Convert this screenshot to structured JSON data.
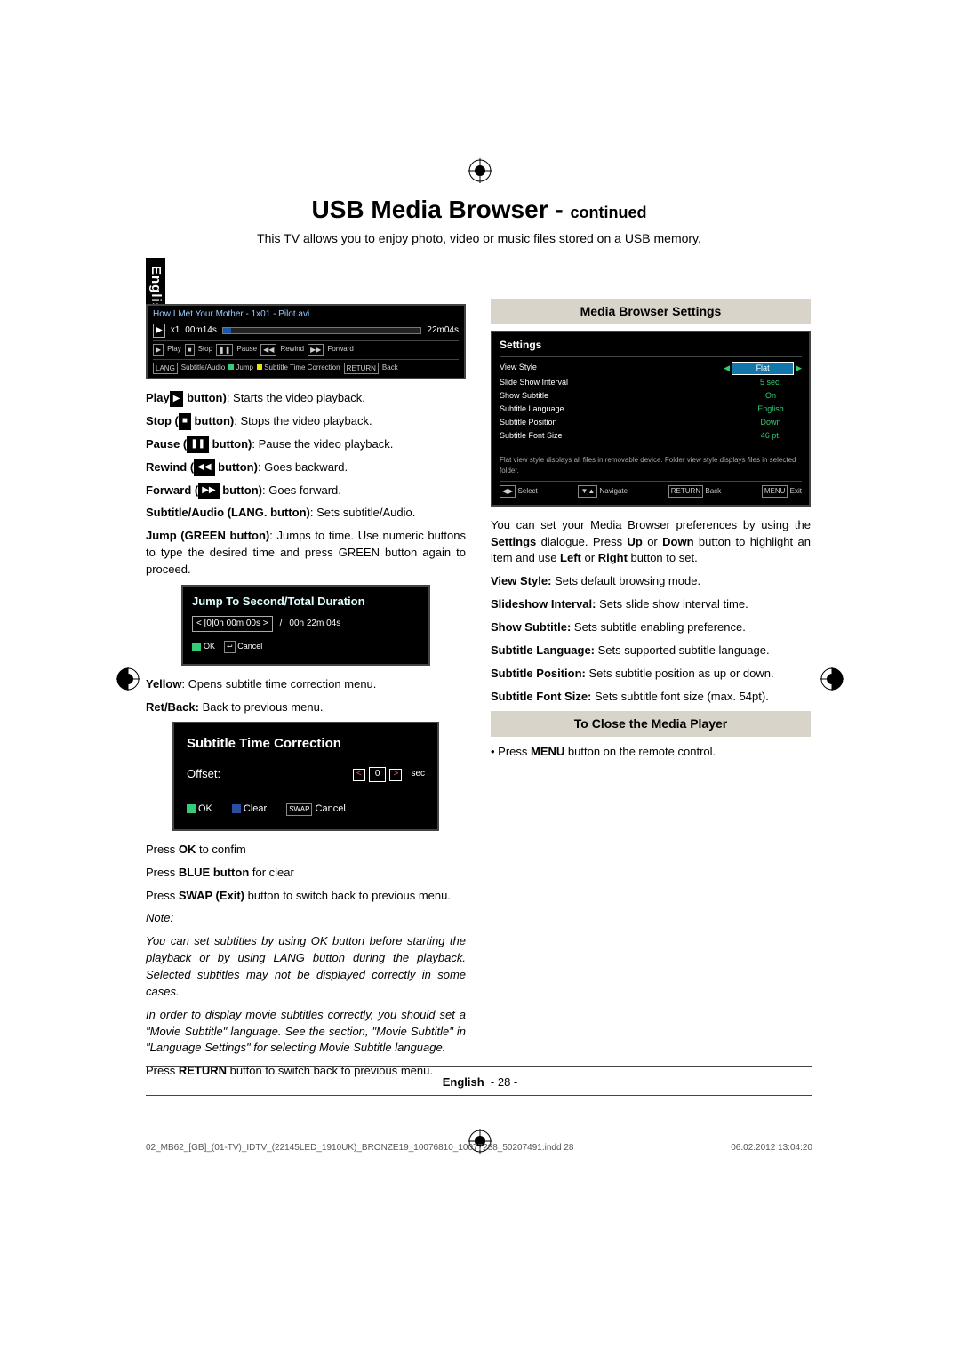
{
  "title": {
    "main": "USB Media Browser - ",
    "cont": "continued"
  },
  "intro": "This TV allows you to enjoy photo, video or music files stored on a USB memory.",
  "lang_tab": "English",
  "videobar": {
    "file": "How I Met Your Mother - 1x01 - Pilot.avi",
    "speed": "x1",
    "elapsed": "00m14s",
    "total": "22m04s",
    "buttons": {
      "play": "Play",
      "stop": "Stop",
      "pause": "Pause",
      "rewind": "Rewind",
      "forward": "Forward",
      "lang": "LANG",
      "sub": "Subtitle/Audio",
      "jump": "Jump",
      "stc": "Subtitle Time Correction",
      "ret": "RETURN",
      "back": "Back"
    }
  },
  "controls": [
    {
      "lead": "Play",
      "mid": " button)",
      "rest": ": Starts the video playback.",
      "icon": "play"
    },
    {
      "lead": "Stop (",
      "mid": " button)",
      "rest": ": Stops the video playback.",
      "icon": "stop"
    },
    {
      "lead": "Pause (",
      "mid": " button)",
      "rest": ": Pause the video playback.",
      "icon": "pause"
    },
    {
      "lead": "Rewind (",
      "mid": " button)",
      "rest": ": Goes backward.",
      "icon": "rew"
    },
    {
      "lead": "Forward (",
      "mid": " button)",
      "rest": ": Goes forward.",
      "icon": "fwd"
    },
    {
      "lead": "Subtitle/Audio (LANG. button)",
      "mid": "",
      "rest": ": Sets subtitle/Audio.",
      "icon": ""
    },
    {
      "lead": "Jump (GREEN button)",
      "mid": "",
      "rest": ": Jumps to time. Use numeric buttons to type the desired time and press GREEN button again to proceed.",
      "icon": ""
    }
  ],
  "jump": {
    "title": "Jump To Second/Total Duration",
    "input": "< [0]0h 00m 00s >",
    "sep": "/",
    "total": "00h 22m 04s",
    "ok": "OK",
    "cancel": "Cancel"
  },
  "mid_text": {
    "yellow": {
      "lead": "Yellow",
      "rest": ": Opens subtitle time correction menu."
    },
    "ret": {
      "lead": "Ret/Back:",
      "rest": " Back to previous menu."
    }
  },
  "subcorr": {
    "title": "Subtitle Time Correction",
    "offset": "Offset:",
    "val": "0",
    "unit": "sec",
    "ok": "OK",
    "clear": "Clear",
    "swap": "SWAP",
    "cancel": "Cancel"
  },
  "after_sub": {
    "l1": {
      "a": "Press ",
      "b": "OK",
      "c": " to confim"
    },
    "l2": {
      "a": "Press ",
      "b": "BLUE button",
      "c": " for clear"
    },
    "l3": {
      "a": "Press ",
      "b": "SWAP (Exit)",
      "c": " button to switch back to previous menu."
    },
    "note": "Note:",
    "n1": "You can set subtitles by using OK button before starting the playback or by using LANG button during the playback. Selected subtitles may not be displayed correctly in some cases.",
    "n2": "In order to display movie subtitles correctly, you should set a \"Movie Subtitle\" language. See the section, \"Movie Subtitle\" in \"Language Settings\" for selecting Movie Subtitle language.",
    "l4": {
      "a": "Press ",
      "b": "RETURN",
      "c": " button to switch back to previous menu."
    }
  },
  "right": {
    "h1": "Media Browser Settings",
    "settings": {
      "title": "Settings",
      "rows": [
        {
          "k": "View Style",
          "v": "Flat",
          "hi": true
        },
        {
          "k": "Slide Show Interval",
          "v": "5 sec."
        },
        {
          "k": "Show Subtitle",
          "v": "On"
        },
        {
          "k": "Subtitle Language",
          "v": "English"
        },
        {
          "k": "Subtitle Position",
          "v": "Down"
        },
        {
          "k": "Subtitle Font Size",
          "v": "46 pt."
        }
      ],
      "note": "Flat view style displays all files in removable device. Folder view style displays files in selected folder.",
      "bot": {
        "a": "Select",
        "b": "Navigate",
        "c": "Back",
        "d": "Exit",
        "kb_ret": "RETURN",
        "kb_menu": "MENU"
      }
    },
    "p1": {
      "a": "You can set your Media Browser preferences by using the ",
      "b": "Settings",
      "c": " dialogue. Press ",
      "d": "Up",
      "e": " or ",
      "f": "Down",
      "g": " button to highlight an item and use ",
      "h": "Left",
      "i": " or ",
      "j": "Right",
      "k": " button to set."
    },
    "items": [
      {
        "k": "View Style:",
        "v": " Sets default browsing mode."
      },
      {
        "k": "Slideshow Interval:",
        "v": " Sets slide show interval time."
      },
      {
        "k": "Show Subtitle:",
        "v": " Sets subtitle enabling preference."
      },
      {
        "k": "Subtitle Language:",
        "v": " Sets supported subtitle language."
      },
      {
        "k": "Subtitle Position:",
        "v": " Sets subtitle position as up or down."
      },
      {
        "k": "Subtitle Font Size:",
        "v": " Sets subtitle font size (max. 54pt)."
      }
    ],
    "h2": "To Close the Media Player",
    "close": {
      "a": "• Press ",
      "b": "MENU",
      "c": " button on the remote control."
    }
  },
  "footer": {
    "lang": "English",
    "page": "- 28 -"
  },
  "printfoot": {
    "left": "02_MB62_[GB]_(01-TV)_IDTV_(22145LED_1910UK)_BRONZE19_10076810_10077288_50207491.indd   28",
    "right": "06.02.2012   13:04:20"
  },
  "colors": {
    "beige": "#d9d4c9",
    "green": "#33cc77",
    "blue": "#1a58a8",
    "yellow": "#e6e600",
    "swapblue": "#2a4fa0"
  }
}
